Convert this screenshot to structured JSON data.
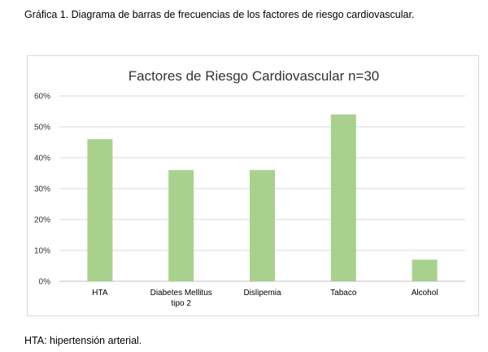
{
  "caption": "Gráfica 1. Diagrama de barras de frecuencias de los factores de riesgo cardiovascular.",
  "footnote": "HTA: hipertensión arterial.",
  "chart_data": {
    "type": "bar",
    "title": "Factores de Riesgo Cardiovascular n=30",
    "categories": [
      [
        "HTA"
      ],
      [
        "Diabetes Mellitus",
        "tipo 2"
      ],
      [
        "Dislipemia"
      ],
      [
        "Tabaco"
      ],
      [
        "Alcohol"
      ]
    ],
    "values": [
      46,
      36,
      36,
      54,
      7
    ],
    "ylim": [
      0,
      60
    ],
    "yticks": [
      "0%",
      "10%",
      "20%",
      "30%",
      "40%",
      "50%",
      "60%"
    ],
    "xlabel": "",
    "ylabel": "",
    "bar_color": "#a9d18e",
    "grid": true,
    "legend": false
  }
}
